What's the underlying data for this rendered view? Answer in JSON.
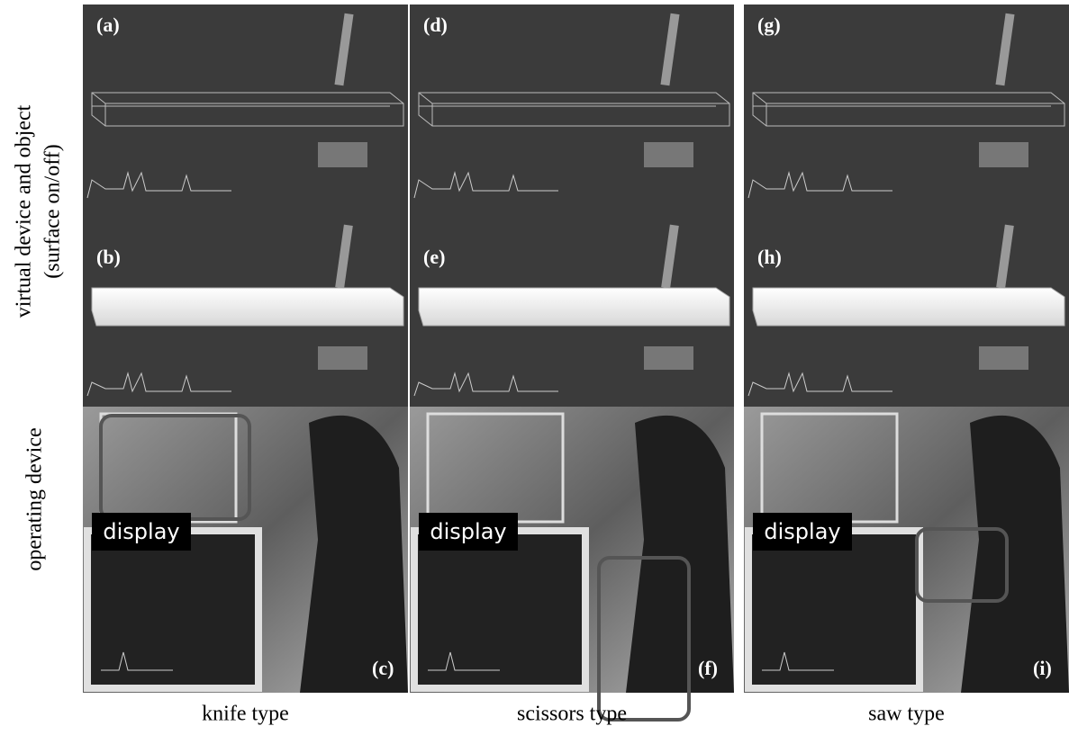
{
  "row_labels": [
    "virtual device and object",
    "(surface on/off)",
    "operating device"
  ],
  "panels": [
    {
      "label": "(a)"
    },
    {
      "label": "(b)"
    },
    {
      "label": "(c)"
    },
    {
      "label": "(d)"
    },
    {
      "label": "(e)"
    },
    {
      "label": "(f)"
    },
    {
      "label": "(g)"
    },
    {
      "label": "(h)"
    },
    {
      "label": "(i)"
    }
  ],
  "display_labels": [
    "display",
    "display",
    "display"
  ],
  "column_labels": [
    "knife type",
    "scissors type",
    "saw type"
  ]
}
